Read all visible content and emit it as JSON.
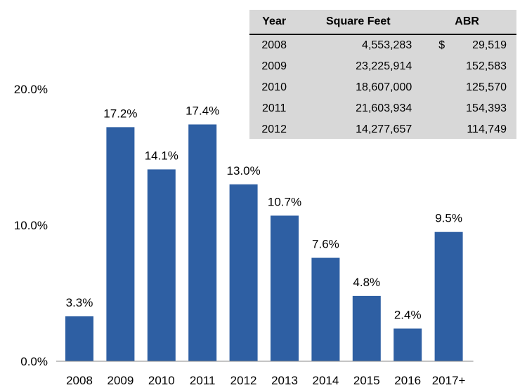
{
  "chart_data": {
    "type": "bar",
    "categories": [
      "2008",
      "2009",
      "2010",
      "2011",
      "2012",
      "2013",
      "2014",
      "2015",
      "2016",
      "2017+"
    ],
    "values": [
      3.3,
      17.2,
      14.1,
      17.4,
      13.0,
      10.7,
      7.6,
      4.8,
      2.4,
      9.5
    ],
    "data_labels": [
      "3.3%",
      "17.2%",
      "14.1%",
      "17.4%",
      "13.0%",
      "10.7%",
      "7.6%",
      "4.8%",
      "2.4%",
      "9.5%"
    ],
    "y_ticks": [
      0,
      10,
      20
    ],
    "y_tick_labels": [
      "0.0%",
      "10.0%",
      "20.0%"
    ],
    "ylim": [
      0,
      20
    ],
    "bar_color": "#2e5fa3",
    "title": "",
    "xlabel": "",
    "ylabel": ""
  },
  "table": {
    "headers": [
      "Year",
      "Square Feet",
      "ABR"
    ],
    "rows": [
      {
        "year": "2008",
        "sqft": "4,553,283",
        "cur": "$",
        "abr": "29,519"
      },
      {
        "year": "2009",
        "sqft": "23,225,914",
        "cur": "",
        "abr": "152,583"
      },
      {
        "year": "2010",
        "sqft": "18,607,000",
        "cur": "",
        "abr": "125,570"
      },
      {
        "year": "2011",
        "sqft": "21,603,934",
        "cur": "",
        "abr": "154,393"
      },
      {
        "year": "2012",
        "sqft": "14,277,657",
        "cur": "",
        "abr": "114,749"
      }
    ]
  }
}
